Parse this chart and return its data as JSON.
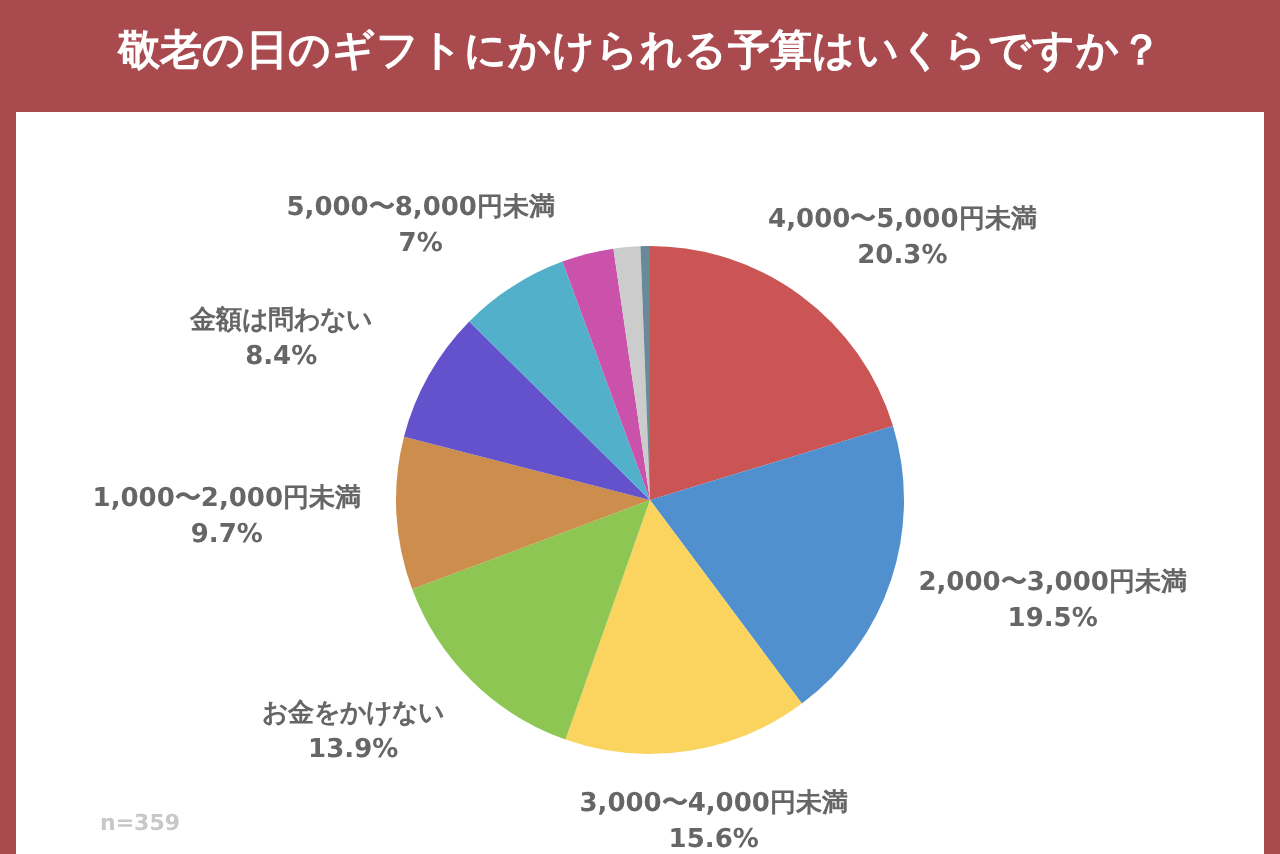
{
  "chart_data": {
    "type": "pie",
    "title": "敬老の日のギフトにかけられる予算はいくらですか？",
    "categories": [
      "4,000〜5,000円未満",
      "2,000〜3,000円未満",
      "3,000〜4,000円未満",
      "お金をかけない",
      "1,000〜2,000円未満",
      "金額は問わない",
      "5,000〜8,000円未満",
      null,
      null,
      null
    ],
    "values": [
      20.3,
      19.5,
      15.6,
      13.9,
      9.7,
      8.4,
      7,
      3.3,
      1.7,
      0.6
    ],
    "value_labels": [
      "20.3%",
      "19.5%",
      "15.6%",
      "13.9%",
      "9.7%",
      "8.4%",
      "7%",
      null,
      null,
      null
    ],
    "colors": [
      "#cb5454",
      "#5090cf",
      "#fbd35f",
      "#8dc653",
      "#cd8d4c",
      "#6352cb",
      "#52b0cb",
      "#cb52ab",
      "#cccccc",
      "#6a8a99"
    ],
    "annotations": [
      "n=359"
    ],
    "legend": false
  }
}
